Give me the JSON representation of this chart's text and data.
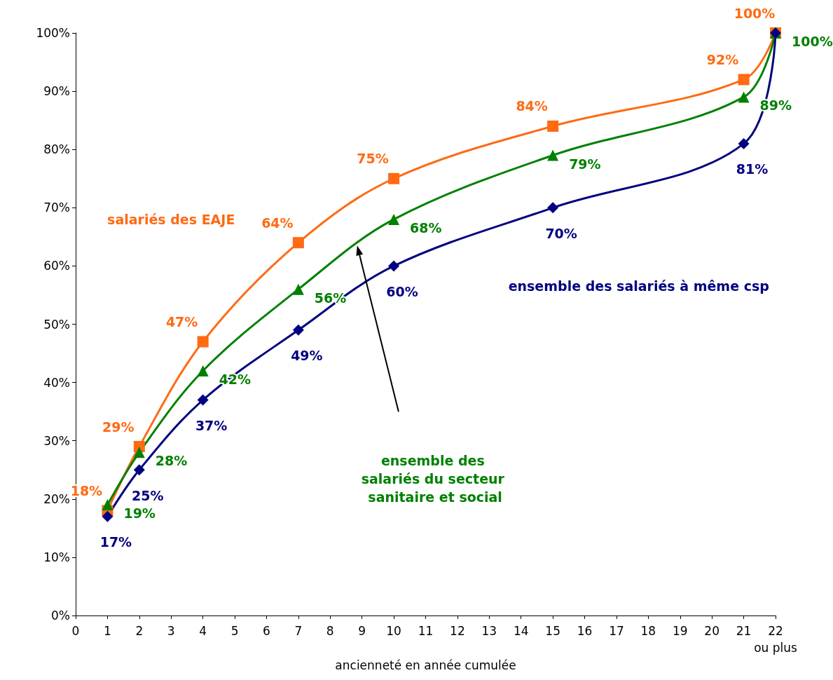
{
  "chart_data": {
    "type": "line",
    "xlabel": "ancienneté en année cumulée",
    "xlim": [
      0,
      22
    ],
    "xticks": [
      0,
      1,
      2,
      3,
      4,
      5,
      6,
      7,
      8,
      9,
      10,
      11,
      12,
      13,
      14,
      15,
      16,
      17,
      18,
      19,
      20,
      21,
      {
        "value": 22,
        "label": "22\nou plus"
      }
    ],
    "ylim": [
      0,
      100
    ],
    "yticks": [
      {
        "value": 0,
        "label": "0%"
      },
      {
        "value": 10,
        "label": "10%"
      },
      {
        "value": 20,
        "label": "20%"
      },
      {
        "value": 30,
        "label": "30%"
      },
      {
        "value": 40,
        "label": "40%"
      },
      {
        "value": 50,
        "label": "50%"
      },
      {
        "value": 60,
        "label": "60%"
      },
      {
        "value": 70,
        "label": "70%"
      },
      {
        "value": 80,
        "label": "80%"
      },
      {
        "value": 90,
        "label": "90%"
      },
      {
        "value": 100,
        "label": "100%"
      }
    ],
    "x": [
      1,
      2,
      4,
      7,
      10,
      15,
      21,
      22
    ],
    "grid": false,
    "legend": false,
    "line_style": "solid",
    "series": [
      {
        "name": "salariés des EAJE",
        "color": "#ff6a13",
        "marker": "square",
        "values": [
          18,
          29,
          47,
          64,
          75,
          84,
          92,
          100
        ],
        "value_labels": [
          "18%",
          "29%",
          "47%",
          "64%",
          "75%",
          "84%",
          "92%",
          "100%"
        ]
      },
      {
        "name": "ensemble des salariés du secteur sanitaire et social",
        "color": "#008000",
        "marker": "triangle",
        "values": [
          19,
          28,
          42,
          56,
          68,
          79,
          89,
          100
        ],
        "value_labels": [
          "19%",
          "28%",
          "42%",
          "56%",
          "68%",
          "79%",
          "89%",
          "100%"
        ]
      },
      {
        "name": "ensemble des salariés à même csp",
        "color": "#000080",
        "marker": "diamond",
        "values": [
          17,
          25,
          37,
          49,
          60,
          70,
          81,
          100
        ],
        "value_labels": [
          "17%",
          "25%",
          "37%",
          "49%",
          "60%",
          "70%",
          "81%",
          null
        ]
      }
    ]
  }
}
